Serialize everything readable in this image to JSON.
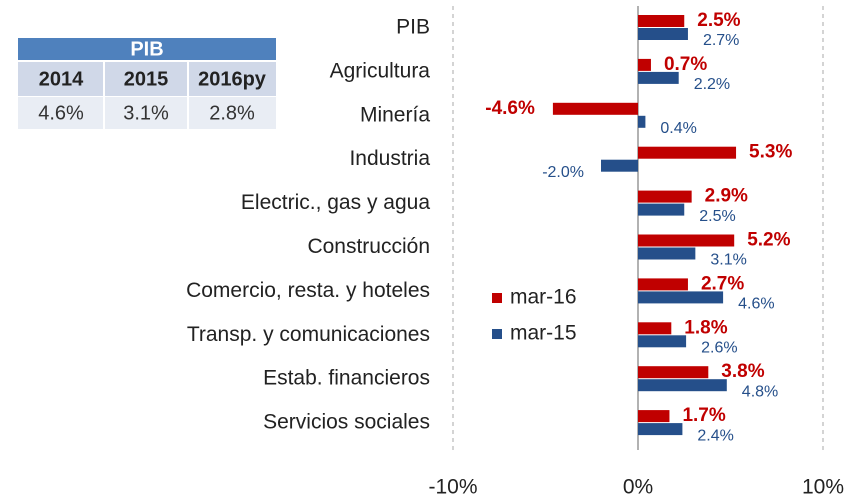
{
  "chart_data": {
    "type": "hbar",
    "categories": [
      "PIB",
      "Agricultura",
      "Minería",
      "Industria",
      "Electric., gas y agua",
      "Construcción",
      "Comercio, resta. y hoteles",
      "Transp. y comunicaciones",
      "Estab. financieros",
      "Servicios sociales"
    ],
    "series": [
      {
        "name": "mar-16",
        "color": "#c00000",
        "values": [
          2.5,
          0.7,
          -4.6,
          5.3,
          2.9,
          5.2,
          2.7,
          1.8,
          3.8,
          1.7
        ],
        "value_labels": [
          "2.5%",
          "0.7%",
          "-4.6%",
          "5.3%",
          "2.9%",
          "5.2%",
          "2.7%",
          "1.8%",
          "3.8%",
          "1.7%"
        ]
      },
      {
        "name": "mar-15",
        "color": "#254f8a",
        "values": [
          2.7,
          2.2,
          0.4,
          -2.0,
          2.5,
          3.1,
          4.6,
          2.6,
          4.8,
          2.4
        ],
        "value_labels": [
          "2.7%",
          "2.2%",
          "0.4%",
          "-2.0%",
          "2.5%",
          "3.1%",
          "4.6%",
          "2.6%",
          "4.8%",
          "2.4%"
        ]
      }
    ],
    "xlim": [
      -10,
      10
    ],
    "xticks": [
      {
        "value": -10,
        "label": "-10%"
      },
      {
        "value": 0,
        "label": "0%"
      },
      {
        "value": 10,
        "label": "10%"
      }
    ],
    "grid": true,
    "legend": "center"
  },
  "table": {
    "title": "PIB",
    "header": [
      "2014",
      "2015",
      "2016py"
    ],
    "rows": [
      [
        "4.6%",
        "3.1%",
        "2.8%"
      ]
    ]
  }
}
